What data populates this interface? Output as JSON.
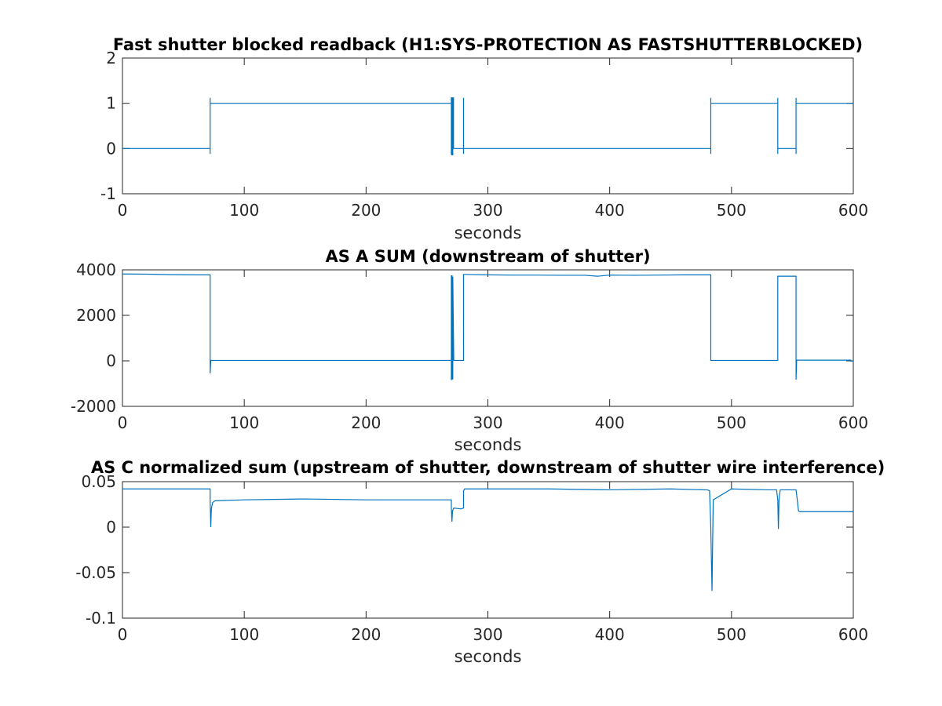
{
  "colors": {
    "line": "#0072bd",
    "axes": "#262626",
    "background": "#ffffff"
  },
  "chart_data": [
    {
      "type": "line",
      "title": "Fast shutter blocked readback (H1:SYS-PROTECTION AS FASTSHUTTERBLOCKED)",
      "xlabel": "seconds",
      "ylabel": "",
      "xlim": [
        0,
        600
      ],
      "ylim": [
        -1,
        2
      ],
      "xticks": [
        "0",
        "100",
        "200",
        "300",
        "400",
        "500",
        "600"
      ],
      "yticks": [
        "-1",
        "0",
        "1",
        "2"
      ],
      "grid": false,
      "series": [
        {
          "x": [
            0,
            72,
            72,
            72,
            72,
            270,
            270,
            270,
            270.6,
            270.6,
            271.2,
            271.2,
            271.8,
            271.8,
            272,
            280,
            280,
            280,
            280,
            483,
            483,
            483,
            483,
            538,
            538,
            538,
            538,
            553,
            553,
            553,
            553,
            600
          ],
          "y": [
            0,
            0,
            -0.12,
            1.12,
            1,
            1,
            -0.14,
            1.12,
            1.12,
            -0.14,
            -0.14,
            1.12,
            1.12,
            0,
            0,
            0,
            -0.12,
            1.12,
            0,
            0,
            -0.12,
            1.12,
            1,
            1,
            -0.12,
            1.12,
            0,
            0,
            -0.12,
            1.12,
            1,
            1
          ]
        }
      ]
    },
    {
      "type": "line",
      "title": "AS A SUM (downstream of shutter)",
      "xlabel": "seconds",
      "ylabel": "",
      "xlim": [
        0,
        600
      ],
      "ylim": [
        -2000,
        4000
      ],
      "xticks": [
        "0",
        "100",
        "200",
        "300",
        "400",
        "500",
        "600"
      ],
      "yticks": [
        "-2000",
        "0",
        "2000",
        "4000"
      ],
      "grid": false,
      "series": [
        {
          "x": [
            0,
            20,
            40,
            60,
            72,
            72,
            72,
            72.5,
            100,
            150,
            200,
            250,
            270,
            270,
            270,
            270.6,
            270.6,
            271.2,
            271.2,
            272,
            280,
            280,
            280,
            281,
            300,
            320,
            340,
            360,
            380,
            390,
            400,
            420,
            440,
            460,
            483,
            483,
            483,
            500,
            538,
            538,
            538,
            550,
            553,
            553,
            553,
            553.5,
            560,
            580,
            598,
            598,
            600
          ],
          "y": [
            3820,
            3810,
            3790,
            3780,
            3780,
            3780,
            -550,
            20,
            20,
            20,
            20,
            20,
            20,
            -850,
            3740,
            3740,
            -800,
            -800,
            3700,
            20,
            20,
            20,
            3800,
            3800,
            3780,
            3770,
            3770,
            3760,
            3760,
            3720,
            3770,
            3760,
            3770,
            3780,
            3780,
            3780,
            20,
            20,
            20,
            20,
            3720,
            3720,
            3720,
            3720,
            -830,
            30,
            30,
            30,
            30,
            -10,
            -10
          ]
        }
      ]
    },
    {
      "type": "line",
      "title": "AS C normalized sum (upstream of shutter, downstream of shutter wire interference)",
      "xlabel": "seconds",
      "ylabel": "",
      "xlim": [
        0,
        600
      ],
      "ylim": [
        -0.1,
        0.05
      ],
      "xticks": [
        "0",
        "100",
        "200",
        "300",
        "400",
        "500",
        "600"
      ],
      "yticks": [
        "-0.1",
        "-0.05",
        "0",
        "0.05"
      ],
      "grid": false,
      "series": [
        {
          "x": [
            0,
            40,
            72,
            72,
            72.5,
            73,
            74,
            76,
            100,
            150,
            200,
            250,
            270,
            270,
            270.5,
            271,
            272,
            278,
            280,
            280,
            281,
            300,
            350,
            400,
            450,
            480,
            482,
            483,
            484,
            485,
            500,
            530,
            537,
            538,
            538.5,
            539,
            540,
            550,
            553,
            554,
            555,
            556,
            570,
            590,
            600
          ],
          "y": [
            0.042,
            0.042,
            0.042,
            0.03,
            0.0,
            0.02,
            0.027,
            0.029,
            0.03,
            0.031,
            0.03,
            0.03,
            0.03,
            0.022,
            0.006,
            0.018,
            0.021,
            0.02,
            0.021,
            0.04,
            0.042,
            0.042,
            0.042,
            0.041,
            0.042,
            0.041,
            0.04,
            0.0,
            -0.07,
            0.03,
            0.042,
            0.041,
            0.041,
            0.03,
            -0.002,
            0.03,
            0.041,
            0.041,
            0.041,
            0.03,
            0.018,
            0.017,
            0.017,
            0.017,
            0.017
          ]
        }
      ]
    }
  ]
}
